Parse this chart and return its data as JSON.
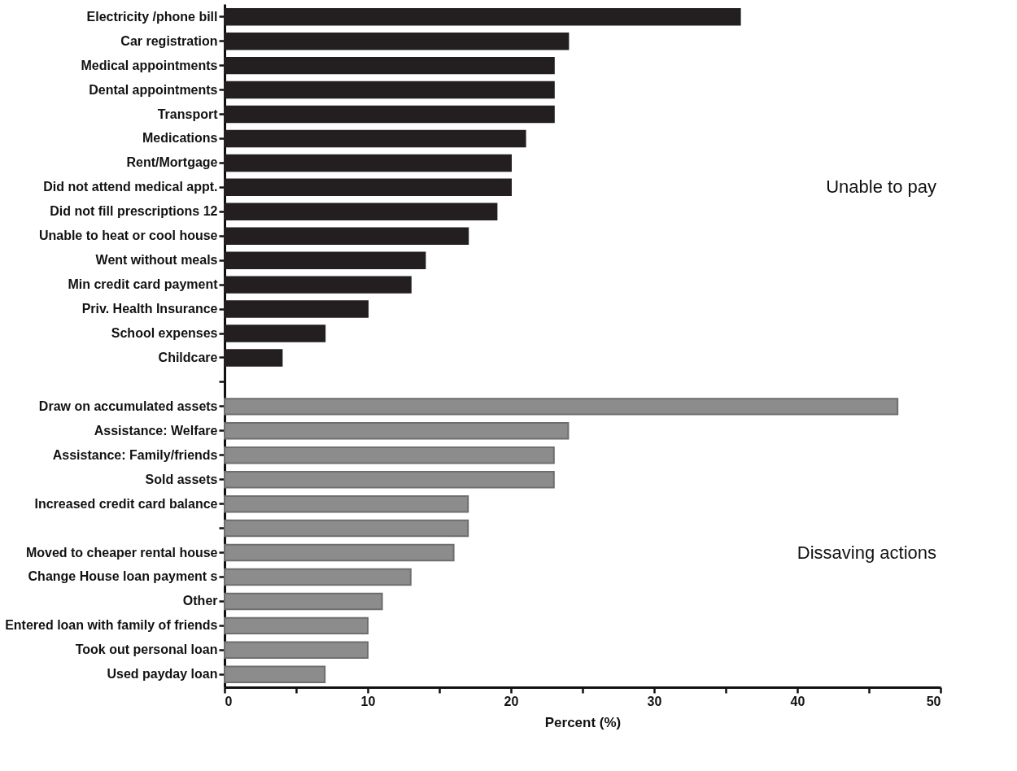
{
  "chart_data": {
    "type": "bar",
    "orientation": "horizontal",
    "xlabel": "Percent (%)",
    "categories": [
      "Electricity /phone bill",
      "Car registration",
      "Medical appointments",
      "Dental appointments",
      "Transport",
      "Medications",
      "Rent/Mortgage",
      "Did not attend medical appt.",
      "Did not fill prescriptions 12",
      "Unable to heat or cool house",
      "Went without meals",
      "Min credit card payment",
      "Priv. Health Insurance",
      "School expenses",
      "Childcare",
      null,
      "Draw on accumulated assets",
      "Assistance: Welfare",
      "Assistance: Family/friends",
      "Sold assets",
      "Increased credit card balance",
      null,
      "Moved to cheaper rental house",
      "Change House loan payment s",
      "Other",
      "Entered loan with family of friends",
      "Took out personal loan",
      "Used payday loan"
    ],
    "series": [
      {
        "name": "Unable to pay",
        "color": "#231f20",
        "values": [
          36,
          24,
          23,
          23,
          23,
          21,
          20,
          20,
          19,
          17,
          14,
          13,
          10,
          7,
          4,
          null,
          null,
          null,
          null,
          null,
          null,
          null,
          null,
          null,
          null,
          null,
          null,
          null
        ]
      },
      {
        "name": "Dissaving actions",
        "color": "#8c8c8c",
        "values": [
          null,
          null,
          null,
          null,
          null,
          null,
          null,
          null,
          null,
          null,
          null,
          null,
          null,
          null,
          null,
          null,
          47,
          24,
          23,
          23,
          17,
          17,
          16,
          13,
          11,
          10,
          10,
          7
        ]
      }
    ],
    "xlim": [
      0,
      50
    ],
    "xticks": [
      0,
      {
        "value": 5,
        "label": null
      },
      10,
      {
        "value": 15,
        "label": null
      },
      20,
      {
        "value": 25,
        "label": null
      },
      30,
      {
        "value": 35,
        "label": null
      },
      40,
      {
        "value": 45,
        "label": null
      },
      50
    ],
    "grid": false
  }
}
